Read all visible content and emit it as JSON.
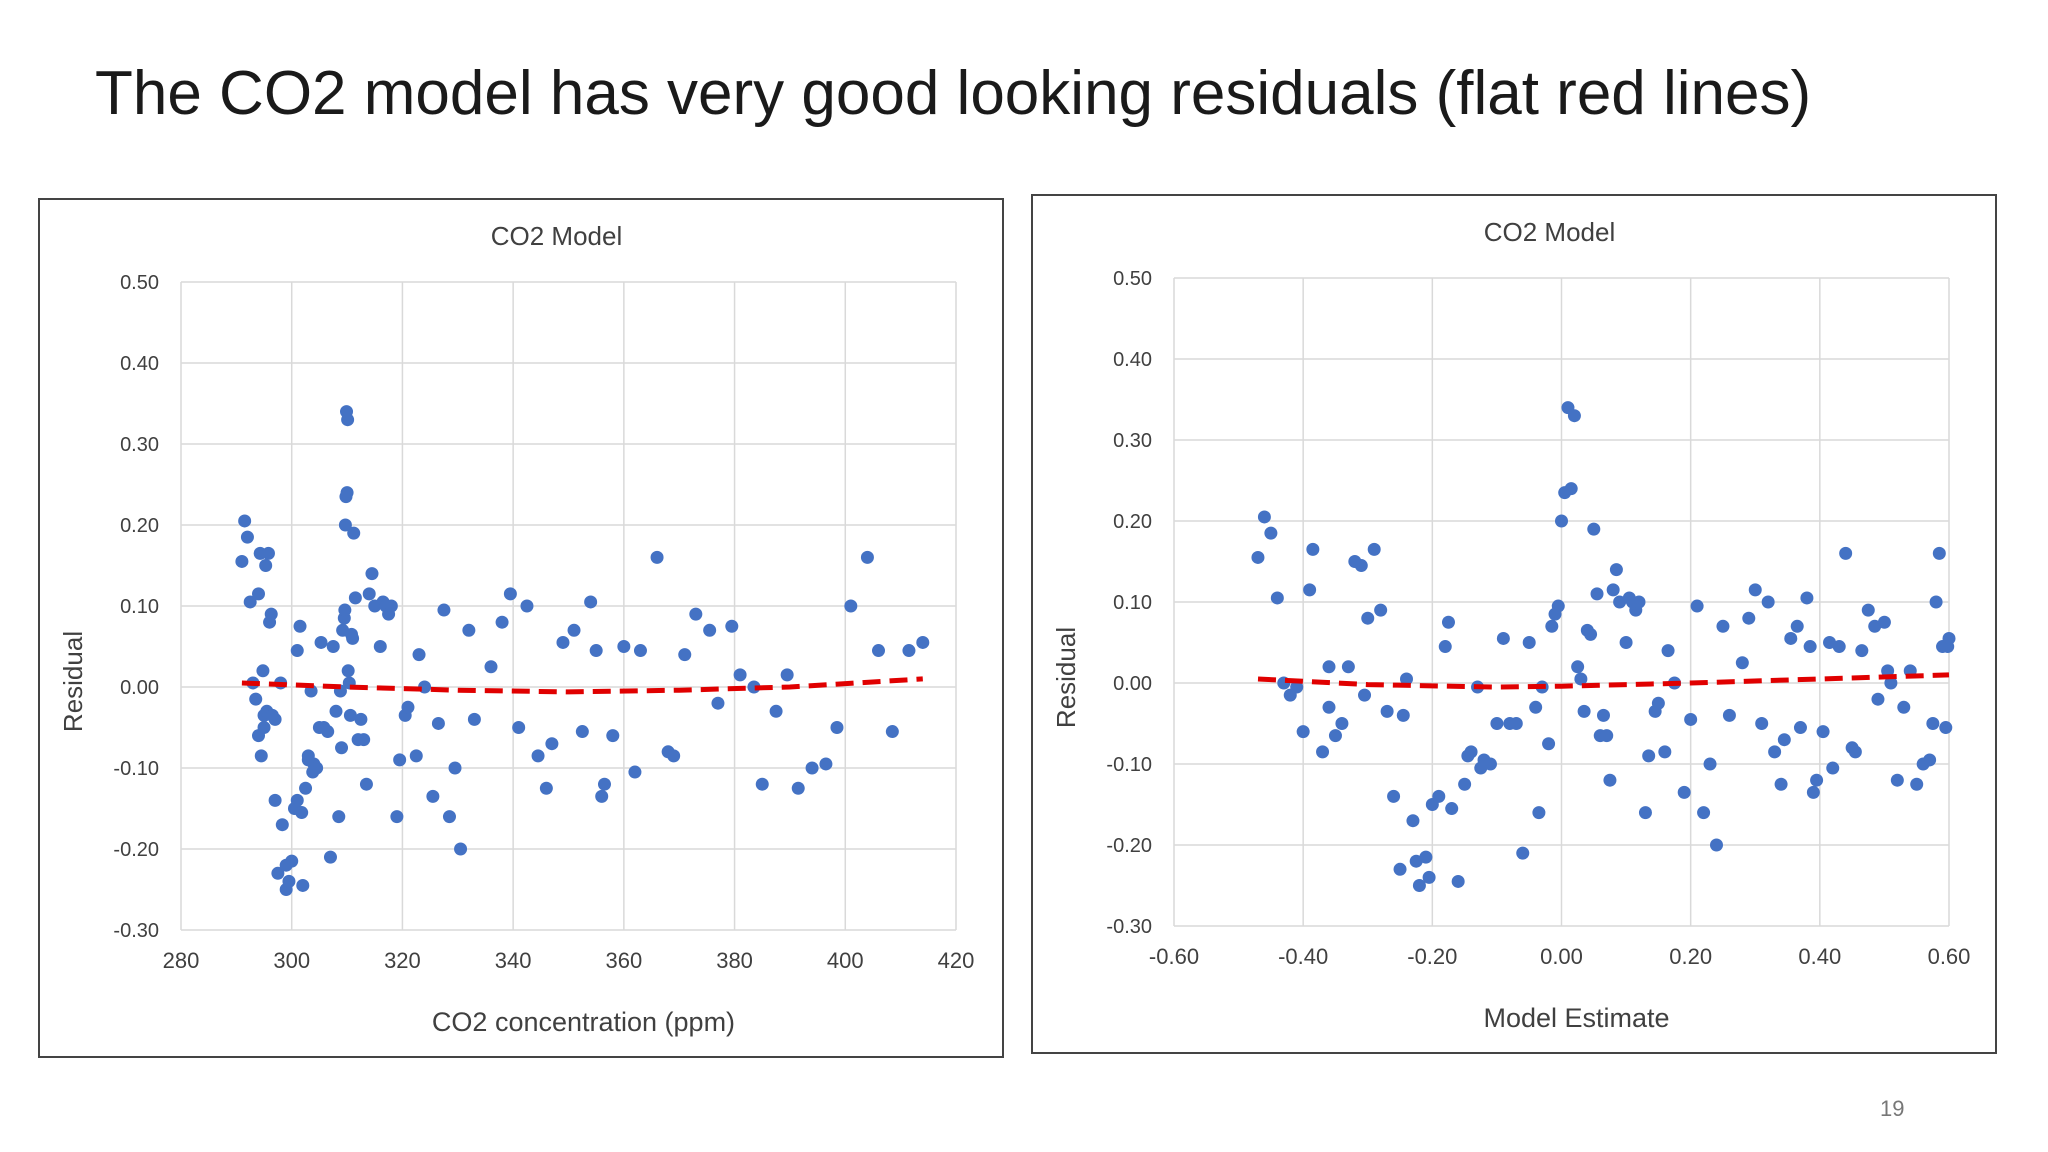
{
  "slide": {
    "title": "The CO2 model has very good looking residuals (flat red lines)",
    "page_number": "19"
  },
  "colors": {
    "points": "#4472c4",
    "trend": "#e00000",
    "grid": "#d9d9d9",
    "axis_text": "#404040"
  },
  "chart_data": [
    {
      "type": "scatter",
      "title": "CO2 Model",
      "xlabel": "CO2 concentration (ppm)",
      "ylabel": "Residual",
      "xlim": [
        280,
        420
      ],
      "ylim": [
        -0.3,
        0.5
      ],
      "x_ticks": [
        280,
        300,
        320,
        340,
        360,
        380,
        400,
        420
      ],
      "x_tick_labels": [
        "280",
        "300",
        "320",
        "340",
        "360",
        "380",
        "400",
        "420"
      ],
      "y_ticks": [
        -0.3,
        -0.2,
        -0.1,
        0.0,
        0.1,
        0.2,
        0.3,
        0.4,
        0.5
      ],
      "y_tick_labels": [
        "-0.30",
        "-0.20",
        "-0.10",
        "0.00",
        "0.10",
        "0.20",
        "0.30",
        "0.40",
        "0.50"
      ],
      "grid": true,
      "trend_line": {
        "style": "dashed",
        "x": [
          291,
          310,
          330,
          350,
          370,
          390,
          414
        ],
        "y": [
          0.005,
          0.0,
          -0.004,
          -0.006,
          -0.004,
          0.0,
          0.01
        ]
      },
      "points": [
        [
          291.0,
          0.155
        ],
        [
          291.5,
          0.205
        ],
        [
          292.0,
          0.185
        ],
        [
          292.5,
          0.105
        ],
        [
          293.0,
          0.005
        ],
        [
          293.5,
          -0.015
        ],
        [
          294.0,
          0.115
        ],
        [
          294.0,
          -0.06
        ],
        [
          294.3,
          0.165
        ],
        [
          294.5,
          -0.085
        ],
        [
          294.8,
          0.02
        ],
        [
          295.0,
          -0.035
        ],
        [
          295.0,
          -0.05
        ],
        [
          295.3,
          0.15
        ],
        [
          295.5,
          -0.03
        ],
        [
          295.8,
          0.165
        ],
        [
          296.0,
          0.08
        ],
        [
          296.3,
          0.09
        ],
        [
          296.5,
          -0.035
        ],
        [
          297.0,
          -0.04
        ],
        [
          297.0,
          -0.14
        ],
        [
          297.5,
          -0.23
        ],
        [
          298.0,
          0.005
        ],
        [
          298.3,
          -0.17
        ],
        [
          299.0,
          -0.22
        ],
        [
          299.0,
          -0.25
        ],
        [
          299.5,
          -0.24
        ],
        [
          300.0,
          -0.215
        ],
        [
          300.5,
          -0.15
        ],
        [
          301.0,
          -0.14
        ],
        [
          301.0,
          0.045
        ],
        [
          301.5,
          0.075
        ],
        [
          301.8,
          -0.155
        ],
        [
          302.0,
          -0.245
        ],
        [
          302.5,
          -0.125
        ],
        [
          303.0,
          -0.085
        ],
        [
          303.0,
          -0.09
        ],
        [
          303.5,
          -0.005
        ],
        [
          303.8,
          -0.105
        ],
        [
          304.0,
          -0.095
        ],
        [
          304.5,
          -0.1
        ],
        [
          305.0,
          -0.05
        ],
        [
          305.3,
          0.055
        ],
        [
          305.8,
          -0.05
        ],
        [
          306.5,
          -0.055
        ],
        [
          307.0,
          -0.21
        ],
        [
          307.5,
          0.05
        ],
        [
          308.0,
          -0.03
        ],
        [
          308.5,
          -0.16
        ],
        [
          308.8,
          -0.005
        ],
        [
          309.0,
          -0.075
        ],
        [
          309.2,
          0.07
        ],
        [
          309.5,
          0.085
        ],
        [
          309.6,
          0.095
        ],
        [
          309.7,
          0.2
        ],
        [
          309.8,
          0.235
        ],
        [
          309.9,
          0.34
        ],
        [
          310.0,
          0.24
        ],
        [
          310.1,
          0.33
        ],
        [
          310.2,
          0.02
        ],
        [
          310.4,
          0.005
        ],
        [
          310.6,
          -0.035
        ],
        [
          310.8,
          0.065
        ],
        [
          311.0,
          0.06
        ],
        [
          311.2,
          0.19
        ],
        [
          311.5,
          0.11
        ],
        [
          312.0,
          -0.065
        ],
        [
          312.5,
          -0.04
        ],
        [
          313.0,
          -0.065
        ],
        [
          313.5,
          -0.12
        ],
        [
          314.0,
          0.115
        ],
        [
          314.5,
          0.14
        ],
        [
          315.0,
          0.1
        ],
        [
          316.0,
          0.05
        ],
        [
          316.5,
          0.105
        ],
        [
          317.0,
          0.1
        ],
        [
          317.5,
          0.09
        ],
        [
          318.0,
          0.1
        ],
        [
          319.0,
          -0.16
        ],
        [
          319.5,
          -0.09
        ],
        [
          320.5,
          -0.035
        ],
        [
          321.0,
          -0.025
        ],
        [
          322.5,
          -0.085
        ],
        [
          323.0,
          0.04
        ],
        [
          324.0,
          0.0
        ],
        [
          325.5,
          -0.135
        ],
        [
          326.5,
          -0.045
        ],
        [
          327.5,
          0.095
        ],
        [
          328.5,
          -0.16
        ],
        [
          329.5,
          -0.1
        ],
        [
          330.5,
          -0.2
        ],
        [
          332.0,
          0.07
        ],
        [
          333.0,
          -0.04
        ],
        [
          336.0,
          0.025
        ],
        [
          338.0,
          0.08
        ],
        [
          339.5,
          0.115
        ],
        [
          341.0,
          -0.05
        ],
        [
          342.5,
          0.1
        ],
        [
          344.5,
          -0.085
        ],
        [
          346.0,
          -0.125
        ],
        [
          347.0,
          -0.07
        ],
        [
          349.0,
          0.055
        ],
        [
          351.0,
          0.07
        ],
        [
          352.5,
          -0.055
        ],
        [
          354.0,
          0.105
        ],
        [
          355.0,
          0.045
        ],
        [
          356.0,
          -0.135
        ],
        [
          356.5,
          -0.12
        ],
        [
          358.0,
          -0.06
        ],
        [
          360.0,
          0.05
        ],
        [
          362.0,
          -0.105
        ],
        [
          363.0,
          0.045
        ],
        [
          366.0,
          0.16
        ],
        [
          368.0,
          -0.08
        ],
        [
          369.0,
          -0.085
        ],
        [
          371.0,
          0.04
        ],
        [
          373.0,
          0.09
        ],
        [
          375.5,
          0.07
        ],
        [
          377.0,
          -0.02
        ],
        [
          379.5,
          0.075
        ],
        [
          381.0,
          0.015
        ],
        [
          383.5,
          0.0
        ],
        [
          385.0,
          -0.12
        ],
        [
          387.5,
          -0.03
        ],
        [
          389.5,
          0.015
        ],
        [
          391.5,
          -0.125
        ],
        [
          394.0,
          -0.1
        ],
        [
          396.5,
          -0.095
        ],
        [
          398.5,
          -0.05
        ],
        [
          401.0,
          0.1
        ],
        [
          404.0,
          0.16
        ],
        [
          406.0,
          0.045
        ],
        [
          408.5,
          -0.055
        ],
        [
          411.5,
          0.045
        ],
        [
          414.0,
          0.055
        ]
      ]
    },
    {
      "type": "scatter",
      "title": "CO2 Model",
      "xlabel": "Model Estimate",
      "ylabel": "Residual",
      "xlim": [
        -0.6,
        0.6
      ],
      "ylim": [
        -0.3,
        0.5
      ],
      "x_ticks": [
        -0.6,
        -0.4,
        -0.2,
        0.0,
        0.2,
        0.4,
        0.6
      ],
      "x_tick_labels": [
        "-0.60",
        "-0.40",
        "-0.20",
        "0.00",
        "0.20",
        "0.40",
        "0.60"
      ],
      "y_ticks": [
        -0.3,
        -0.2,
        -0.1,
        0.0,
        0.1,
        0.2,
        0.3,
        0.4,
        0.5
      ],
      "y_tick_labels": [
        "-0.30",
        "-0.20",
        "-0.10",
        "0.00",
        "0.10",
        "0.20",
        "0.30",
        "0.40",
        "0.50"
      ],
      "grid": true,
      "trend_line": {
        "style": "dashed",
        "x": [
          -0.47,
          -0.3,
          -0.1,
          0.0,
          0.2,
          0.4,
          0.6
        ],
        "y": [
          0.005,
          -0.002,
          -0.005,
          -0.004,
          0.0,
          0.005,
          0.01
        ]
      },
      "points": [
        [
          -0.47,
          0.155
        ],
        [
          -0.46,
          0.205
        ],
        [
          -0.45,
          0.185
        ],
        [
          -0.44,
          0.105
        ],
        [
          -0.43,
          0.0
        ],
        [
          -0.42,
          -0.015
        ],
        [
          -0.41,
          -0.005
        ],
        [
          -0.4,
          -0.06
        ],
        [
          -0.39,
          0.115
        ],
        [
          -0.385,
          0.165
        ],
        [
          -0.37,
          -0.085
        ],
        [
          -0.36,
          0.02
        ],
        [
          -0.36,
          -0.03
        ],
        [
          -0.35,
          -0.065
        ],
        [
          -0.34,
          -0.05
        ],
        [
          -0.33,
          0.02
        ],
        [
          -0.32,
          0.15
        ],
        [
          -0.31,
          0.145
        ],
        [
          -0.305,
          -0.015
        ],
        [
          -0.3,
          0.08
        ],
        [
          -0.29,
          0.165
        ],
        [
          -0.28,
          0.09
        ],
        [
          -0.27,
          -0.035
        ],
        [
          -0.26,
          -0.14
        ],
        [
          -0.25,
          -0.23
        ],
        [
          -0.245,
          -0.04
        ],
        [
          -0.24,
          0.005
        ],
        [
          -0.23,
          -0.17
        ],
        [
          -0.225,
          -0.22
        ],
        [
          -0.22,
          -0.25
        ],
        [
          -0.21,
          -0.215
        ],
        [
          -0.205,
          -0.24
        ],
        [
          -0.2,
          -0.15
        ],
        [
          -0.19,
          -0.14
        ],
        [
          -0.18,
          0.045
        ],
        [
          -0.175,
          0.075
        ],
        [
          -0.17,
          -0.155
        ],
        [
          -0.16,
          -0.245
        ],
        [
          -0.15,
          -0.125
        ],
        [
          -0.145,
          -0.09
        ],
        [
          -0.14,
          -0.085
        ],
        [
          -0.13,
          -0.005
        ],
        [
          -0.125,
          -0.105
        ],
        [
          -0.12,
          -0.095
        ],
        [
          -0.11,
          -0.1
        ],
        [
          -0.1,
          -0.05
        ],
        [
          -0.09,
          0.055
        ],
        [
          -0.08,
          -0.05
        ],
        [
          -0.07,
          -0.05
        ],
        [
          -0.06,
          -0.21
        ],
        [
          -0.05,
          0.05
        ],
        [
          -0.04,
          -0.03
        ],
        [
          -0.035,
          -0.16
        ],
        [
          -0.03,
          -0.005
        ],
        [
          -0.02,
          -0.075
        ],
        [
          -0.015,
          0.07
        ],
        [
          -0.01,
          0.085
        ],
        [
          -0.005,
          0.095
        ],
        [
          0.0,
          0.2
        ],
        [
          0.005,
          0.235
        ],
        [
          0.01,
          0.34
        ],
        [
          0.015,
          0.24
        ],
        [
          0.02,
          0.33
        ],
        [
          0.025,
          0.02
        ],
        [
          0.03,
          0.005
        ],
        [
          0.035,
          -0.035
        ],
        [
          0.04,
          0.065
        ],
        [
          0.045,
          0.06
        ],
        [
          0.05,
          0.19
        ],
        [
          0.055,
          0.11
        ],
        [
          0.06,
          -0.065
        ],
        [
          0.065,
          -0.04
        ],
        [
          0.07,
          -0.065
        ],
        [
          0.075,
          -0.12
        ],
        [
          0.08,
          0.115
        ],
        [
          0.085,
          0.14
        ],
        [
          0.09,
          0.1
        ],
        [
          0.1,
          0.05
        ],
        [
          0.105,
          0.105
        ],
        [
          0.11,
          0.1
        ],
        [
          0.115,
          0.09
        ],
        [
          0.12,
          0.1
        ],
        [
          0.13,
          -0.16
        ],
        [
          0.135,
          -0.09
        ],
        [
          0.145,
          -0.035
        ],
        [
          0.15,
          -0.025
        ],
        [
          0.16,
          -0.085
        ],
        [
          0.165,
          0.04
        ],
        [
          0.175,
          0.0
        ],
        [
          0.19,
          -0.135
        ],
        [
          0.2,
          -0.045
        ],
        [
          0.21,
          0.095
        ],
        [
          0.22,
          -0.16
        ],
        [
          0.23,
          -0.1
        ],
        [
          0.24,
          -0.2
        ],
        [
          0.25,
          0.07
        ],
        [
          0.26,
          -0.04
        ],
        [
          0.28,
          0.025
        ],
        [
          0.29,
          0.08
        ],
        [
          0.3,
          0.115
        ],
        [
          0.31,
          -0.05
        ],
        [
          0.32,
          0.1
        ],
        [
          0.33,
          -0.085
        ],
        [
          0.34,
          -0.125
        ],
        [
          0.345,
          -0.07
        ],
        [
          0.355,
          0.055
        ],
        [
          0.365,
          0.07
        ],
        [
          0.37,
          -0.055
        ],
        [
          0.38,
          0.105
        ],
        [
          0.385,
          0.045
        ],
        [
          0.39,
          -0.135
        ],
        [
          0.395,
          -0.12
        ],
        [
          0.405,
          -0.06
        ],
        [
          0.415,
          0.05
        ],
        [
          0.42,
          -0.105
        ],
        [
          0.43,
          0.045
        ],
        [
          0.44,
          0.16
        ],
        [
          0.45,
          -0.08
        ],
        [
          0.455,
          -0.085
        ],
        [
          0.465,
          0.04
        ],
        [
          0.475,
          0.09
        ],
        [
          0.485,
          0.07
        ],
        [
          0.49,
          -0.02
        ],
        [
          0.5,
          0.075
        ],
        [
          0.505,
          0.015
        ],
        [
          0.51,
          0.0
        ],
        [
          0.52,
          -0.12
        ],
        [
          0.53,
          -0.03
        ],
        [
          0.54,
          0.015
        ],
        [
          0.55,
          -0.125
        ],
        [
          0.56,
          -0.1
        ],
        [
          0.57,
          -0.095
        ],
        [
          0.575,
          -0.05
        ],
        [
          0.58,
          0.1
        ],
        [
          0.585,
          0.16
        ],
        [
          0.59,
          0.045
        ],
        [
          0.595,
          -0.055
        ],
        [
          0.598,
          0.045
        ],
        [
          0.6,
          0.055
        ]
      ]
    }
  ]
}
